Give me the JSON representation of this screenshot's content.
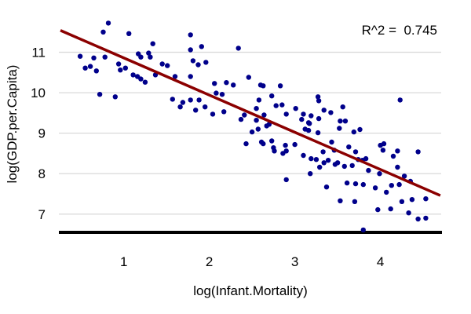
{
  "chart_data": {
    "type": "scatter",
    "title": "",
    "annotation": "R^2 =  0.745",
    "r_squared": 0.745,
    "xlabel": "log(Infant.Mortality)",
    "ylabel": "log(GDP.per.Capita)",
    "xlim": [
      0.26,
      4.71
    ],
    "ylim": [
      6.53,
      12.0
    ],
    "x_ticks": [
      "1",
      "2",
      "3",
      "4"
    ],
    "x_tick_values": [
      1,
      2,
      3,
      4
    ],
    "y_ticks": [
      "7",
      "8",
      "9",
      "10",
      "11"
    ],
    "y_tick_values": [
      7,
      8,
      9,
      10,
      11
    ],
    "grid": "horizontal-only",
    "legend": "none",
    "point_color": "#00008B",
    "line_color": "#8B0000",
    "axis_line_color": "#000000",
    "grid_color": "#d9d9d9",
    "text_color": "#000000",
    "regression_line": {
      "x1": 0.26,
      "y1": 11.54,
      "x2": 4.7,
      "y2": 7.46
    },
    "points": [
      [
        0.82,
        11.72
      ],
      [
        0.76,
        11.5
      ],
      [
        1.06,
        11.46
      ],
      [
        1.78,
        11.43
      ],
      [
        1.34,
        11.21
      ],
      [
        1.78,
        11.06
      ],
      [
        0.49,
        10.9
      ],
      [
        0.65,
        10.86
      ],
      [
        0.78,
        10.88
      ],
      [
        1.17,
        10.96
      ],
      [
        1.2,
        10.88
      ],
      [
        1.29,
        10.98
      ],
      [
        1.31,
        10.88
      ],
      [
        1.81,
        10.79
      ],
      [
        0.94,
        10.71
      ],
      [
        1.02,
        10.61
      ],
      [
        0.96,
        10.56
      ],
      [
        0.55,
        10.61
      ],
      [
        0.61,
        10.65
      ],
      [
        0.68,
        10.54
      ],
      [
        1.11,
        10.44
      ],
      [
        1.16,
        10.4
      ],
      [
        1.2,
        10.34
      ],
      [
        1.25,
        10.26
      ],
      [
        1.37,
        10.44
      ],
      [
        1.45,
        10.71
      ],
      [
        1.51,
        10.67
      ],
      [
        1.6,
        10.4
      ],
      [
        1.78,
        10.4
      ],
      [
        0.72,
        9.96
      ],
      [
        0.9,
        9.9
      ],
      [
        1.57,
        9.84
      ],
      [
        1.69,
        9.76
      ],
      [
        1.78,
        9.82
      ],
      [
        1.66,
        9.65
      ],
      [
        1.84,
        9.57
      ],
      [
        1.91,
        11.14
      ],
      [
        2.34,
        11.1
      ],
      [
        1.87,
        10.69
      ],
      [
        1.96,
        10.75
      ],
      [
        2.46,
        10.38
      ],
      [
        2.06,
        10.23
      ],
      [
        2.2,
        10.25
      ],
      [
        2.28,
        10.19
      ],
      [
        2.6,
        10.19
      ],
      [
        2.63,
        10.17
      ],
      [
        2.83,
        10.17
      ],
      [
        2.08,
        9.99
      ],
      [
        2.15,
        9.96
      ],
      [
        2.58,
        9.82
      ],
      [
        2.73,
        9.92
      ],
      [
        1.88,
        9.82
      ],
      [
        1.95,
        9.65
      ],
      [
        2.04,
        9.47
      ],
      [
        2.17,
        9.53
      ],
      [
        2.41,
        9.45
      ],
      [
        2.55,
        9.61
      ],
      [
        2.64,
        9.45
      ],
      [
        2.78,
        9.68
      ],
      [
        2.85,
        9.7
      ],
      [
        2.9,
        9.47
      ],
      [
        3.01,
        9.61
      ],
      [
        3.1,
        9.47
      ],
      [
        3.19,
        9.43
      ],
      [
        3.27,
        9.9
      ],
      [
        3.28,
        9.8
      ],
      [
        3.34,
        9.57
      ],
      [
        3.42,
        9.51
      ],
      [
        2.37,
        9.34
      ],
      [
        2.55,
        9.32
      ],
      [
        3.17,
        9.24
      ],
      [
        3.28,
        9.36
      ],
      [
        3.56,
        9.65
      ],
      [
        3.53,
        9.3
      ],
      [
        4.23,
        9.82
      ],
      [
        2.7,
        9.22
      ],
      [
        3.08,
        9.34
      ],
      [
        3.16,
        9.26
      ],
      [
        2.5,
        9.03
      ],
      [
        2.57,
        9.1
      ],
      [
        2.67,
        9.18
      ],
      [
        3.12,
        9.1
      ],
      [
        3.16,
        9.07
      ],
      [
        3.27,
        9.01
      ],
      [
        2.43,
        8.74
      ],
      [
        2.61,
        8.78
      ],
      [
        2.63,
        8.74
      ],
      [
        2.73,
        8.81
      ],
      [
        2.75,
        8.64
      ],
      [
        2.76,
        8.56
      ],
      [
        2.89,
        8.7
      ],
      [
        2.9,
        8.56
      ],
      [
        2.86,
        8.5
      ],
      [
        3.0,
        8.72
      ],
      [
        3.1,
        8.45
      ],
      [
        3.19,
        8.37
      ],
      [
        3.25,
        8.35
      ],
      [
        3.33,
        8.54
      ],
      [
        3.34,
        8.27
      ],
      [
        3.39,
        8.33
      ],
      [
        3.43,
        8.78
      ],
      [
        3.46,
        8.58
      ],
      [
        3.29,
        8.16
      ],
      [
        3.47,
        8.23
      ],
      [
        3.18,
        8.0
      ],
      [
        2.9,
        7.85
      ],
      [
        3.37,
        7.67
      ],
      [
        3.59,
        9.3
      ],
      [
        3.52,
        9.12
      ],
      [
        3.69,
        9.03
      ],
      [
        3.76,
        9.09
      ],
      [
        4.0,
        8.7
      ],
      [
        4.04,
        8.74
      ],
      [
        4.03,
        8.58
      ],
      [
        3.63,
        8.66
      ],
      [
        3.71,
        8.54
      ],
      [
        3.5,
        8.27
      ],
      [
        3.58,
        8.18
      ],
      [
        3.67,
        8.2
      ],
      [
        3.74,
        8.35
      ],
      [
        3.79,
        8.33
      ],
      [
        3.83,
        8.37
      ],
      [
        3.86,
        8.08
      ],
      [
        3.99,
        8.0
      ],
      [
        4.15,
        8.43
      ],
      [
        4.2,
        8.56
      ],
      [
        4.2,
        8.16
      ],
      [
        4.28,
        7.94
      ],
      [
        4.35,
        7.81
      ],
      [
        4.44,
        8.54
      ],
      [
        3.61,
        7.77
      ],
      [
        3.71,
        7.75
      ],
      [
        3.8,
        7.73
      ],
      [
        3.94,
        7.65
      ],
      [
        4.07,
        7.54
      ],
      [
        4.13,
        7.71
      ],
      [
        4.22,
        7.73
      ],
      [
        3.53,
        7.33
      ],
      [
        3.7,
        7.31
      ],
      [
        3.97,
        7.11
      ],
      [
        4.12,
        7.13
      ],
      [
        4.25,
        7.31
      ],
      [
        4.37,
        7.36
      ],
      [
        4.33,
        7.03
      ],
      [
        4.44,
        6.88
      ],
      [
        4.53,
        6.9
      ],
      [
        4.53,
        7.38
      ],
      [
        3.8,
        6.61
      ]
    ]
  }
}
